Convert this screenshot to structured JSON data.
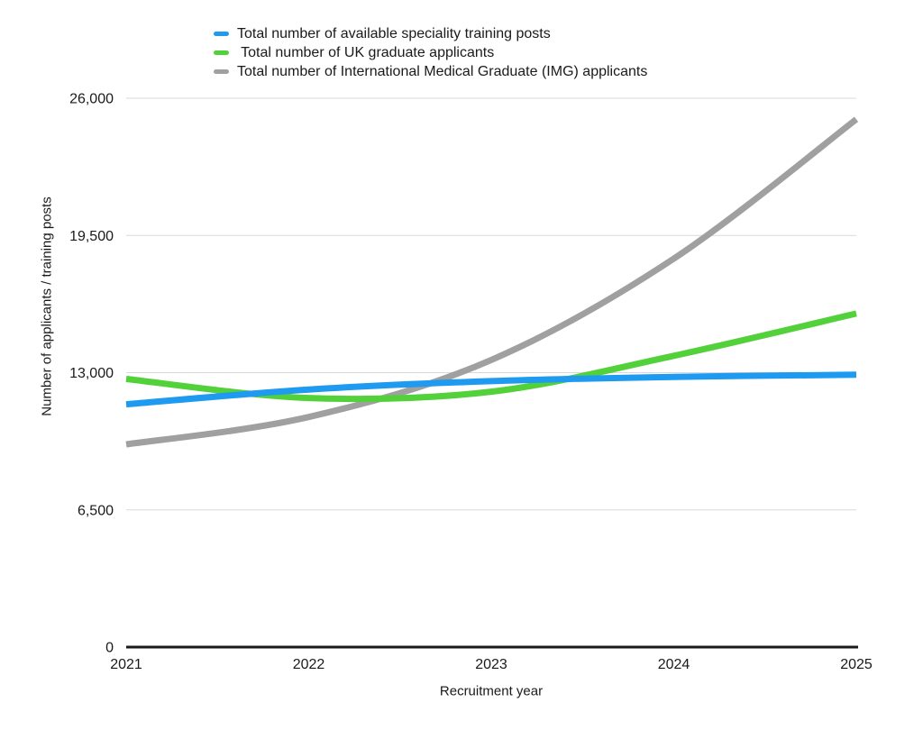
{
  "colors": {
    "background": "#ffffff",
    "gridline": "#d9d9d9",
    "axis_line": "#1a1a1a",
    "text": "#1a1a1a"
  },
  "chart_data": {
    "type": "line",
    "title": "",
    "xlabel": "Recruitment year",
    "ylabel": "Number of applicants / training posts",
    "x": [
      2021,
      2022,
      2023,
      2024,
      2025
    ],
    "xtick_labels": [
      "2021",
      "2022",
      "2023",
      "2024",
      "2025"
    ],
    "ylim": [
      0,
      26000
    ],
    "yticks": [
      0,
      6500,
      13000,
      19500,
      26000
    ],
    "ytick_labels": [
      "0",
      "6,500",
      "13,000",
      "19,500",
      "26,000"
    ],
    "grid": "horizontal",
    "legend_position": "top",
    "line_style": "smoothed",
    "series": [
      {
        "name": "Total number of available speciality training posts",
        "color": "#1E9BF0",
        "values": [
          11500,
          12200,
          12600,
          12800,
          12900
        ]
      },
      {
        "name": " Total number of UK graduate applicants",
        "color": "#53D13A",
        "values": [
          12700,
          11800,
          12100,
          13800,
          15800
        ]
      },
      {
        "name": "Total number of International Medical Graduate (IMG) applicants",
        "color": "#A0A0A0",
        "values": [
          9600,
          10900,
          13600,
          18400,
          25000
        ]
      }
    ]
  }
}
